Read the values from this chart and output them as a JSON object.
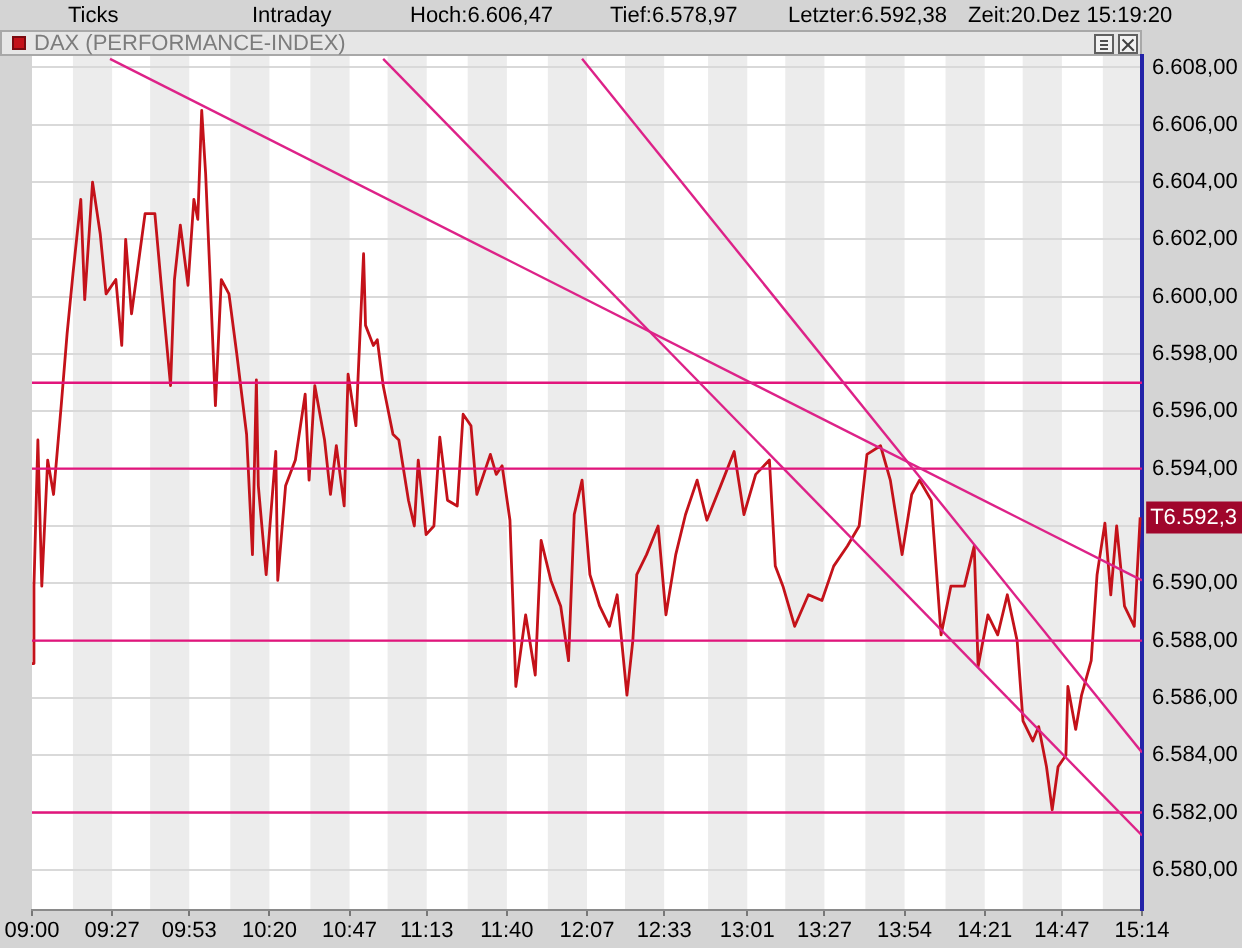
{
  "chart_data": {
    "type": "line",
    "title": "DAX (PERFORMANCE-INDEX)",
    "annotations": [
      "Ticks",
      "Intraday",
      "Hoch:6.606,47",
      "Tief:6.578,97",
      "Letzter:6.592,38",
      "Zeit:20.Dez 15:19:20",
      {
        "text": "T6.592,3",
        "x": 15.223,
        "y": 6592.3
      }
    ],
    "x": [
      9.0,
      9.011,
      9.033,
      9.055,
      9.088,
      9.121,
      9.164,
      9.197,
      9.23,
      9.274,
      9.296,
      9.34,
      9.383,
      9.416,
      9.471,
      9.504,
      9.526,
      9.559,
      9.635,
      9.69,
      9.723,
      9.778,
      9.8,
      9.833,
      9.876,
      9.909,
      9.931,
      9.953,
      9.975,
      9.997,
      10.03,
      10.063,
      10.106,
      10.15,
      10.205,
      10.238,
      10.26,
      10.271,
      10.315,
      10.336,
      10.369,
      10.38,
      10.424,
      10.479,
      10.534,
      10.556,
      10.588,
      10.643,
      10.676,
      10.709,
      10.753,
      10.775,
      10.819,
      10.862,
      10.873,
      10.917,
      10.939,
      10.972,
      11.027,
      11.06,
      11.114,
      11.147,
      11.169,
      11.213,
      11.257,
      11.29,
      11.333,
      11.388,
      11.421,
      11.465,
      11.498,
      11.574,
      11.607,
      11.64,
      11.684,
      11.717,
      11.772,
      11.826,
      11.859,
      11.914,
      11.969,
      12.013,
      12.045,
      12.089,
      12.133,
      12.188,
      12.243,
      12.286,
      12.341,
      12.374,
      12.396,
      12.451,
      12.516,
      12.56,
      12.615,
      12.67,
      12.735,
      12.79,
      12.867,
      12.943,
      12.998,
      13.064,
      13.141,
      13.174,
      13.217,
      13.283,
      13.36,
      13.436,
      13.502,
      13.579,
      13.645,
      13.689,
      13.765,
      13.82,
      13.886,
      13.94,
      13.984,
      14.05,
      14.105,
      14.16,
      14.236,
      14.291,
      14.313,
      14.368,
      14.423,
      14.477,
      14.532,
      14.565,
      14.62,
      14.653,
      14.697,
      14.729,
      14.762,
      14.806,
      14.817,
      14.861,
      14.894,
      14.948,
      14.981,
      15.025,
      15.058,
      15.091,
      15.135,
      15.19,
      15.223
    ],
    "series": [
      {
        "color": "#c4121a",
        "values": [
          6587.2,
          6589.9,
          6595.0,
          6589.9,
          6594.3,
          6593.1,
          6596.2,
          6598.7,
          6600.8,
          6603.4,
          6599.9,
          6604.0,
          6602.2,
          6600.1,
          6600.6,
          6598.3,
          6602.0,
          6599.4,
          6602.9,
          6602.9,
          6600.6,
          6596.9,
          6600.6,
          6602.5,
          6600.4,
          6603.4,
          6602.7,
          6606.5,
          6604.3,
          6601.1,
          6596.2,
          6600.6,
          6600.1,
          6598.0,
          6595.2,
          6591.0,
          6597.1,
          6593.4,
          6590.3,
          6592.0,
          6594.6,
          6590.1,
          6593.4,
          6594.3,
          6596.6,
          6593.6,
          6596.9,
          6595.0,
          6593.1,
          6594.8,
          6592.7,
          6597.3,
          6595.5,
          6601.5,
          6599.0,
          6598.3,
          6598.5,
          6596.9,
          6595.2,
          6595.0,
          6592.9,
          6592.0,
          6594.3,
          6591.7,
          6592.0,
          6595.1,
          6592.9,
          6592.7,
          6595.9,
          6595.5,
          6593.1,
          6594.5,
          6593.8,
          6594.1,
          6592.2,
          6586.4,
          6588.9,
          6586.8,
          6591.5,
          6590.1,
          6589.2,
          6587.3,
          6592.4,
          6593.6,
          6590.3,
          6589.2,
          6588.5,
          6589.6,
          6586.1,
          6588.0,
          6590.3,
          6591.0,
          6592.0,
          6588.9,
          6591.0,
          6592.4,
          6593.6,
          6592.2,
          6593.4,
          6594.6,
          6592.4,
          6593.8,
          6594.3,
          6590.6,
          6589.9,
          6588.5,
          6589.6,
          6589.4,
          6590.6,
          6591.3,
          6592.0,
          6594.5,
          6594.8,
          6593.6,
          6591.0,
          6593.1,
          6593.6,
          6592.9,
          6588.2,
          6589.9,
          6589.9,
          6591.3,
          6587.1,
          6588.9,
          6588.2,
          6589.6,
          6588.0,
          6585.2,
          6584.5,
          6585.0,
          6583.6,
          6582.1,
          6583.6,
          6584.0,
          6586.4,
          6584.9,
          6586.1,
          6587.3,
          6590.3,
          6592.1,
          6589.6,
          6592.0,
          6589.2,
          6588.5,
          6592.3
        ]
      },
      {
        "type": "line",
        "color": "#dd2288",
        "x": [
          9.438,
          15.2333
        ],
        "values": [
          6608.3,
          6590.1
        ]
      },
      {
        "type": "line",
        "color": "#dd2288",
        "x": [
          10.972,
          15.2333
        ],
        "values": [
          6608.3,
          6581.2
        ]
      },
      {
        "type": "line",
        "color": "#dd2288",
        "x": [
          12.089,
          15.2333
        ],
        "values": [
          6608.3,
          6584.1
        ]
      },
      {
        "type": "line",
        "color": "#e2157c",
        "x": [
          9,
          15.2333
        ],
        "values": [
          6597.0,
          6597.0
        ]
      },
      {
        "type": "line",
        "color": "#e2157c",
        "x": [
          9,
          15.2333
        ],
        "values": [
          6594.0,
          6594.0
        ]
      },
      {
        "type": "line",
        "color": "#e2157c",
        "x": [
          9,
          15.2333
        ],
        "values": [
          6588.0,
          6588.0
        ]
      },
      {
        "type": "line",
        "color": "#e2157c",
        "x": [
          9,
          15.2333
        ],
        "values": [
          6582.0,
          6582.0
        ]
      }
    ],
    "xlim": [
      9,
      15.2333
    ],
    "xticks": [
      {
        "value": 9,
        "label": "09:00"
      },
      {
        "value": 9.45,
        "label": "09:27"
      },
      {
        "value": 9.8833,
        "label": "09:53"
      },
      {
        "value": 10.3333,
        "label": "10:20"
      },
      {
        "value": 10.7833,
        "label": "10:47"
      },
      {
        "value": 11.2167,
        "label": "11:13"
      },
      {
        "value": 11.6667,
        "label": "11:40"
      },
      {
        "value": 12.1167,
        "label": "12:07"
      },
      {
        "value": 12.55,
        "label": "12:33"
      },
      {
        "value": 13.0167,
        "label": "13:01"
      },
      {
        "value": 13.45,
        "label": "13:27"
      },
      {
        "value": 13.9,
        "label": "13:54"
      },
      {
        "value": 14.35,
        "label": "14:21"
      },
      {
        "value": 14.7833,
        "label": "14:47"
      },
      {
        "value": 15.2333,
        "label": "15:14"
      }
    ],
    "ylim": [
      6578.6,
      6608.4
    ],
    "yticks": [
      {
        "value": 6580,
        "label": "6.580,00"
      },
      {
        "value": 6582,
        "label": "6.582,00"
      },
      {
        "value": 6584,
        "label": "6.584,00"
      },
      {
        "value": 6586,
        "label": "6.586,00"
      },
      {
        "value": 6588,
        "label": "6.588,00"
      },
      {
        "value": 6590,
        "label": "6.590,00"
      },
      {
        "value": 6592,
        "label": null
      },
      {
        "value": 6594,
        "label": "6.594,00"
      },
      {
        "value": 6596,
        "label": "6.596,00"
      },
      {
        "value": 6598,
        "label": "6.598,00"
      },
      {
        "value": 6600,
        "label": "6.600,00"
      },
      {
        "value": 6602,
        "label": "6.602,00"
      },
      {
        "value": 6604,
        "label": "6.604,00"
      },
      {
        "value": 6606,
        "label": "6.606,00"
      },
      {
        "value": 6608,
        "label": "6.608,00"
      }
    ],
    "bands": [
      {
        "axis": "x",
        "from": 9.23,
        "to": 9.45,
        "color": "#ececec"
      },
      {
        "axis": "x",
        "from": 9.6633,
        "to": 9.8833,
        "color": "#ececec"
      },
      {
        "axis": "x",
        "from": 10.1133,
        "to": 10.3333,
        "color": "#ececec"
      },
      {
        "axis": "x",
        "from": 10.5633,
        "to": 10.7833,
        "color": "#ececec"
      },
      {
        "axis": "x",
        "from": 10.9967,
        "to": 11.2167,
        "color": "#ececec"
      },
      {
        "axis": "x",
        "from": 11.4467,
        "to": 11.6667,
        "color": "#ececec"
      },
      {
        "axis": "x",
        "from": 11.8967,
        "to": 12.1167,
        "color": "#ececec"
      },
      {
        "axis": "x",
        "from": 12.33,
        "to": 12.55,
        "color": "#ececec"
      },
      {
        "axis": "x",
        "from": 12.7967,
        "to": 13.0167,
        "color": "#ececec"
      },
      {
        "axis": "x",
        "from": 13.23,
        "to": 13.45,
        "color": "#ececec"
      },
      {
        "axis": "x",
        "from": 13.68,
        "to": 13.9,
        "color": "#ececec"
      },
      {
        "axis": "x",
        "from": 14.13,
        "to": 14.35,
        "color": "#ececec"
      },
      {
        "axis": "x",
        "from": 14.5633,
        "to": 14.7833,
        "color": "#ececec"
      },
      {
        "axis": "x",
        "from": 15.0133,
        "to": 15.2333,
        "color": "#ececec"
      }
    ],
    "grid": "y",
    "marker": "none"
  }
}
